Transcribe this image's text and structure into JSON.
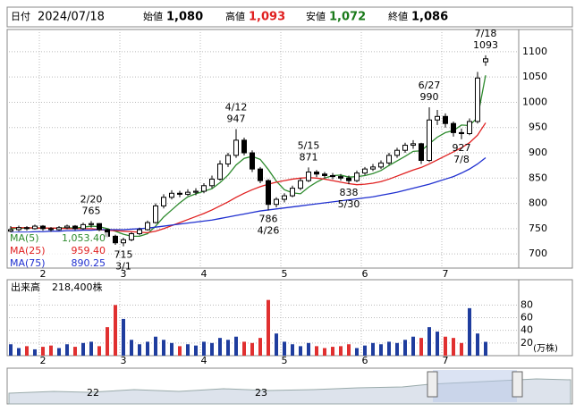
{
  "header": {
    "date_label": "日付",
    "date": "2024/07/18",
    "fields": [
      {
        "label": "始値",
        "value": "1,080"
      },
      {
        "label": "高値",
        "value": "1,093"
      },
      {
        "label": "安値",
        "value": "1,072"
      },
      {
        "label": "終値",
        "value": "1,086"
      }
    ]
  },
  "chart_data": {
    "type": "candlestick",
    "ylim": [
      672,
      1144
    ],
    "yticks": [
      700,
      750,
      800,
      850,
      900,
      950,
      1000,
      1050,
      1100
    ],
    "grid": true,
    "xticks": [
      {
        "value": 4,
        "label": "2"
      },
      {
        "value": 14,
        "label": "3"
      },
      {
        "value": 24,
        "label": "4"
      },
      {
        "value": 34,
        "label": "5"
      },
      {
        "value": 44,
        "label": "6"
      },
      {
        "value": 54,
        "label": "7"
      }
    ],
    "up_color": "#ffffff",
    "down_color": "#000000",
    "ohlc": [
      [
        745,
        755,
        742,
        748
      ],
      [
        748,
        756,
        745,
        752
      ],
      [
        752,
        755,
        746,
        750
      ],
      [
        750,
        758,
        748,
        755
      ],
      [
        755,
        757,
        746,
        750
      ],
      [
        750,
        753,
        744,
        748
      ],
      [
        748,
        755,
        746,
        752
      ],
      [
        752,
        758,
        749,
        755
      ],
      [
        755,
        757,
        747,
        750
      ],
      [
        750,
        762,
        748,
        758
      ],
      [
        758,
        765,
        752,
        760
      ],
      [
        760,
        761,
        745,
        748
      ],
      [
        748,
        750,
        732,
        735
      ],
      [
        735,
        738,
        718,
        722
      ],
      [
        722,
        732,
        715,
        728
      ],
      [
        728,
        743,
        725,
        740
      ],
      [
        740,
        752,
        737,
        748
      ],
      [
        748,
        766,
        746,
        762
      ],
      [
        762,
        800,
        760,
        795
      ],
      [
        795,
        818,
        790,
        812
      ],
      [
        812,
        826,
        808,
        820
      ],
      [
        820,
        825,
        812,
        818
      ],
      [
        818,
        828,
        815,
        822
      ],
      [
        822,
        830,
        816,
        824
      ],
      [
        824,
        840,
        820,
        835
      ],
      [
        835,
        855,
        830,
        848
      ],
      [
        848,
        885,
        845,
        878
      ],
      [
        878,
        900,
        872,
        895
      ],
      [
        895,
        947,
        890,
        925
      ],
      [
        925,
        930,
        895,
        900
      ],
      [
        900,
        905,
        862,
        868
      ],
      [
        868,
        872,
        840,
        845
      ],
      [
        845,
        848,
        786,
        798
      ],
      [
        798,
        812,
        792,
        808
      ],
      [
        808,
        820,
        802,
        815
      ],
      [
        815,
        835,
        812,
        830
      ],
      [
        830,
        850,
        826,
        845
      ],
      [
        845,
        871,
        842,
        862
      ],
      [
        862,
        866,
        852,
        858
      ],
      [
        858,
        862,
        850,
        855
      ],
      [
        855,
        860,
        848,
        853
      ],
      [
        853,
        858,
        845,
        850
      ],
      [
        850,
        855,
        838,
        845
      ],
      [
        845,
        865,
        842,
        860
      ],
      [
        860,
        872,
        856,
        868
      ],
      [
        868,
        878,
        864,
        872
      ],
      [
        872,
        885,
        868,
        880
      ],
      [
        880,
        900,
        876,
        895
      ],
      [
        895,
        910,
        890,
        905
      ],
      [
        905,
        920,
        900,
        915
      ],
      [
        915,
        925,
        908,
        918
      ],
      [
        918,
        920,
        878,
        885
      ],
      [
        885,
        990,
        882,
        965
      ],
      [
        965,
        985,
        955,
        972
      ],
      [
        972,
        978,
        950,
        958
      ],
      [
        958,
        962,
        932,
        940
      ],
      [
        940,
        948,
        927,
        938
      ],
      [
        938,
        968,
        935,
        962
      ],
      [
        962,
        1060,
        958,
        1048
      ],
      [
        1080,
        1093,
        1072,
        1086
      ]
    ],
    "series": [
      {
        "name": "MA(5)",
        "color": "#2e8b2e",
        "last_label": "1,053.40",
        "values": [
          750,
          751,
          751,
          752,
          751,
          751,
          751,
          752,
          751,
          753,
          755,
          754,
          750,
          745,
          739,
          735,
          735,
          740,
          755,
          773,
          787,
          801,
          813,
          819,
          824,
          829,
          841,
          856,
          876,
          889,
          893,
          887,
          867,
          844,
          827,
          821,
          819,
          832,
          842,
          850,
          855,
          856,
          852,
          853,
          855,
          859,
          865,
          875,
          884,
          893,
          903,
          904,
          918,
          931,
          940,
          944,
          955,
          954,
          970,
          1053.4
        ]
      },
      {
        "name": "MA(25)",
        "color": "#e02020",
        "last_label": "959.40",
        "values": [
          752,
          752,
          752,
          751,
          751,
          751,
          751,
          750,
          750,
          750,
          750,
          748,
          747,
          746,
          745,
          744,
          743,
          742,
          745,
          750,
          756,
          762,
          768,
          774,
          780,
          787,
          795,
          803,
          812,
          820,
          827,
          833,
          838,
          842,
          845,
          848,
          850,
          851,
          850,
          848,
          845,
          842,
          839,
          837,
          838,
          840,
          843,
          848,
          854,
          860,
          866,
          871,
          878,
          886,
          894,
          902,
          910,
          920,
          935,
          959.4
        ]
      },
      {
        "name": "MA(75)",
        "color": "#2030d0",
        "last_label": "890.25",
        "values": [
          742,
          743,
          743,
          744,
          744,
          745,
          745,
          746,
          746,
          747,
          747,
          748,
          748,
          748,
          748,
          749,
          750,
          751,
          753,
          755,
          757,
          759,
          761,
          763,
          765,
          767,
          770,
          773,
          776,
          779,
          782,
          785,
          787,
          789,
          791,
          793,
          795,
          797,
          799,
          801,
          803,
          805,
          807,
          809,
          811,
          813,
          816,
          819,
          822,
          826,
          830,
          834,
          838,
          843,
          848,
          853,
          860,
          868,
          878,
          890.25
        ]
      }
    ],
    "annotations": [
      {
        "date": "7/18",
        "value": 1093
      },
      {
        "date": "6/27",
        "value": 990
      },
      {
        "date": "4/12",
        "value": 947
      },
      {
        "date": "2/20",
        "value": 765
      },
      {
        "date": "5/15",
        "value": 871
      },
      {
        "date": "5/30",
        "value": 838
      },
      {
        "date": "4/26",
        "value": 786
      },
      {
        "date": "3/1",
        "value": 715
      },
      {
        "date": "7/8",
        "value": 927
      }
    ]
  },
  "volume": {
    "type": "bar",
    "title": "出来高",
    "last_label": "218,400株",
    "unit": "(万株)",
    "ylim": [
      0,
      120
    ],
    "yticks": [
      20,
      40,
      60,
      80
    ],
    "up_color": "#1f3d9e",
    "down_color": "#e03030",
    "values": [
      18,
      12,
      15,
      10,
      14,
      16,
      12,
      18,
      14,
      20,
      22,
      15,
      45,
      80,
      58,
      25,
      18,
      22,
      30,
      25,
      20,
      15,
      18,
      16,
      22,
      20,
      28,
      25,
      30,
      22,
      20,
      28,
      88,
      35,
      22,
      18,
      15,
      20,
      15,
      12,
      14,
      15,
      18,
      12,
      16,
      20,
      18,
      22,
      20,
      25,
      30,
      28,
      45,
      38,
      30,
      28,
      20,
      75,
      35,
      21.84
    ]
  },
  "navigator": {
    "labels": [
      "22",
      "23"
    ]
  }
}
